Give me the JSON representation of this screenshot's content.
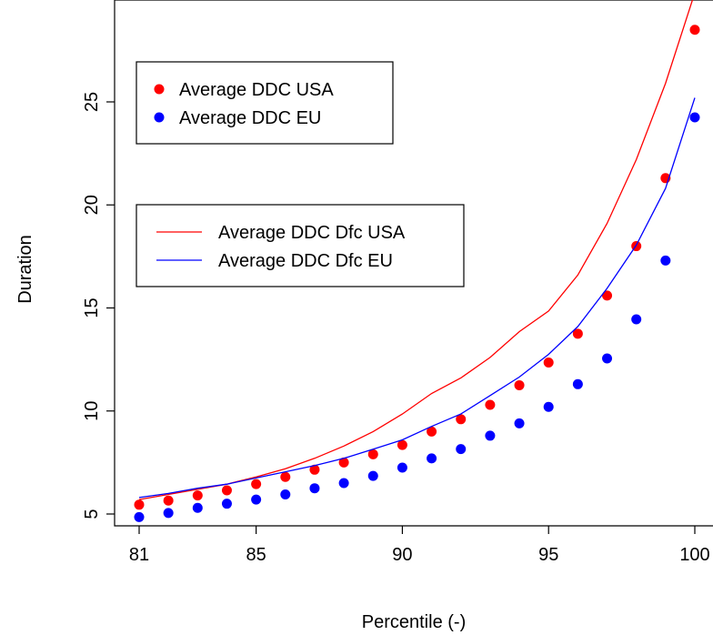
{
  "chart_data": {
    "type": "scatter",
    "xlabel": "Percentile (-)",
    "ylabel": "Duration",
    "xlim": [
      80.5,
      100.2
    ],
    "ylim": [
      4.5,
      29.6
    ],
    "x_ticks": [
      81,
      85,
      90,
      95,
      100
    ],
    "y_ticks": [
      5,
      10,
      15,
      20,
      25
    ],
    "grid": false,
    "legends": [
      {
        "position": "top-left",
        "entries": [
          {
            "label": "Average DDC USA",
            "color": "#ff0000",
            "marker": "point"
          },
          {
            "label": "Average DDC EU",
            "color": "#0000ff",
            "marker": "point"
          }
        ]
      },
      {
        "position": "upper-left",
        "entries": [
          {
            "label": "Average DDC Dfc USA",
            "color": "#ff0000",
            "marker": "line"
          },
          {
            "label": "Average DDC Dfc EU",
            "color": "#0000ff",
            "marker": "line"
          }
        ]
      }
    ],
    "x": [
      81,
      82,
      83,
      84,
      85,
      86,
      87,
      88,
      89,
      90,
      91,
      92,
      93,
      94,
      95,
      96,
      97,
      98,
      99,
      100
    ],
    "series": [
      {
        "name": "Average DDC USA",
        "kind": "points",
        "color": "#ff0000",
        "values": [
          5.45,
          5.65,
          5.9,
          6.15,
          6.45,
          6.8,
          7.15,
          7.5,
          7.9,
          8.35,
          9.0,
          9.6,
          10.3,
          11.25,
          12.35,
          13.75,
          15.6,
          18.0,
          21.3,
          28.5
        ]
      },
      {
        "name": "Average DDC EU",
        "kind": "points",
        "color": "#0000ff",
        "values": [
          4.85,
          5.05,
          5.3,
          5.5,
          5.7,
          5.95,
          6.25,
          6.5,
          6.85,
          7.25,
          7.7,
          8.15,
          8.8,
          9.4,
          10.2,
          11.3,
          12.55,
          14.45,
          17.3,
          24.25
        ]
      },
      {
        "name": "Average DDC Dfc USA",
        "kind": "line",
        "color": "#ff0000",
        "values": [
          5.7,
          5.95,
          6.2,
          6.45,
          6.8,
          7.2,
          7.7,
          8.3,
          9.0,
          9.85,
          10.85,
          11.6,
          12.6,
          13.85,
          14.85,
          16.6,
          19.1,
          22.2,
          25.9,
          30.3
        ]
      },
      {
        "name": "Average DDC Dfc EU",
        "kind": "line",
        "color": "#0000ff",
        "values": [
          5.8,
          6.0,
          6.25,
          6.45,
          6.75,
          7.05,
          7.35,
          7.7,
          8.15,
          8.6,
          9.25,
          9.85,
          10.75,
          11.65,
          12.75,
          14.1,
          15.95,
          18.05,
          20.8,
          25.2
        ]
      }
    ]
  }
}
